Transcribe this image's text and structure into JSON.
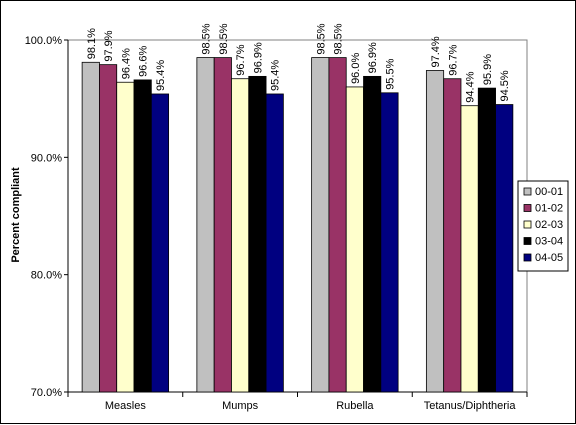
{
  "chart_data": {
    "type": "bar",
    "title": "",
    "xlabel": "",
    "ylabel": "Percent compliant",
    "ylim": [
      70,
      100
    ],
    "yticks": [
      70,
      80,
      90,
      100
    ],
    "ytick_labels": [
      "70.0%",
      "80.0%",
      "90.0%",
      "100.0%"
    ],
    "categories": [
      "Measles",
      "Mumps",
      "Rubella",
      "Tetanus/Diphtheria"
    ],
    "series": [
      {
        "name": "00-01",
        "color": "#c0c0c0",
        "values": [
          98.1,
          98.5,
          98.5,
          97.4
        ],
        "labels": [
          "98.1%",
          "98.5%",
          "98.5%",
          "97.4%"
        ]
      },
      {
        "name": "01-02",
        "color": "#993366",
        "values": [
          97.9,
          98.5,
          98.5,
          96.7
        ],
        "labels": [
          "97.9%",
          "98.5%",
          "98.5%",
          "96.7%"
        ]
      },
      {
        "name": "02-03",
        "color": "#ffffcc",
        "values": [
          96.4,
          96.7,
          96.0,
          94.4
        ],
        "labels": [
          "96.4%",
          "96.7%",
          "96.0%",
          "94.4%"
        ]
      },
      {
        "name": "03-04",
        "color": "#000000",
        "values": [
          96.6,
          96.9,
          96.9,
          95.9
        ],
        "labels": [
          "96.6%",
          "96.9%",
          "96.9%",
          "95.9%"
        ]
      },
      {
        "name": "04-05",
        "color": "#000080",
        "values": [
          95.4,
          95.4,
          95.5,
          94.5
        ],
        "labels": [
          "95.4%",
          "95.4%",
          "95.5%",
          "94.5%"
        ]
      }
    ],
    "grid": false,
    "legend_position": "right"
  }
}
